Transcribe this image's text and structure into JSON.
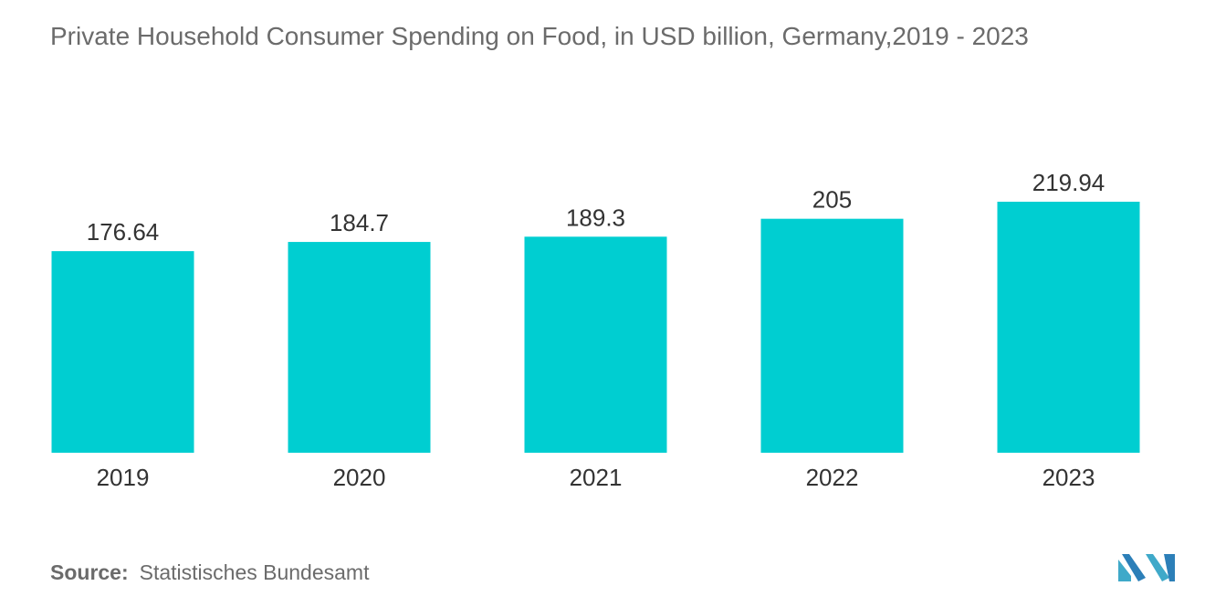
{
  "colors": {
    "bar": "#00CED1",
    "logo": "#3FA9C9"
  },
  "chart_data": {
    "type": "bar",
    "title": "Private Household Consumer Spending on Food, in USD billion, Germany,2019 - 2023",
    "categories": [
      "2019",
      "2020",
      "2021",
      "2022",
      "2023"
    ],
    "values": [
      176.64,
      184.7,
      189.3,
      205,
      219.94
    ],
    "value_labels": [
      "176.64",
      "184.7",
      "189.3",
      "205",
      "219.94"
    ],
    "xlabel": "",
    "ylabel": "",
    "ylim": [
      0,
      219.94
    ],
    "grid": false,
    "legend": "none"
  },
  "source": {
    "label": "Source:",
    "text": "Statistisches Bundesamt"
  },
  "logo": {
    "icon": "mordor-intelligence-logo-icon"
  }
}
